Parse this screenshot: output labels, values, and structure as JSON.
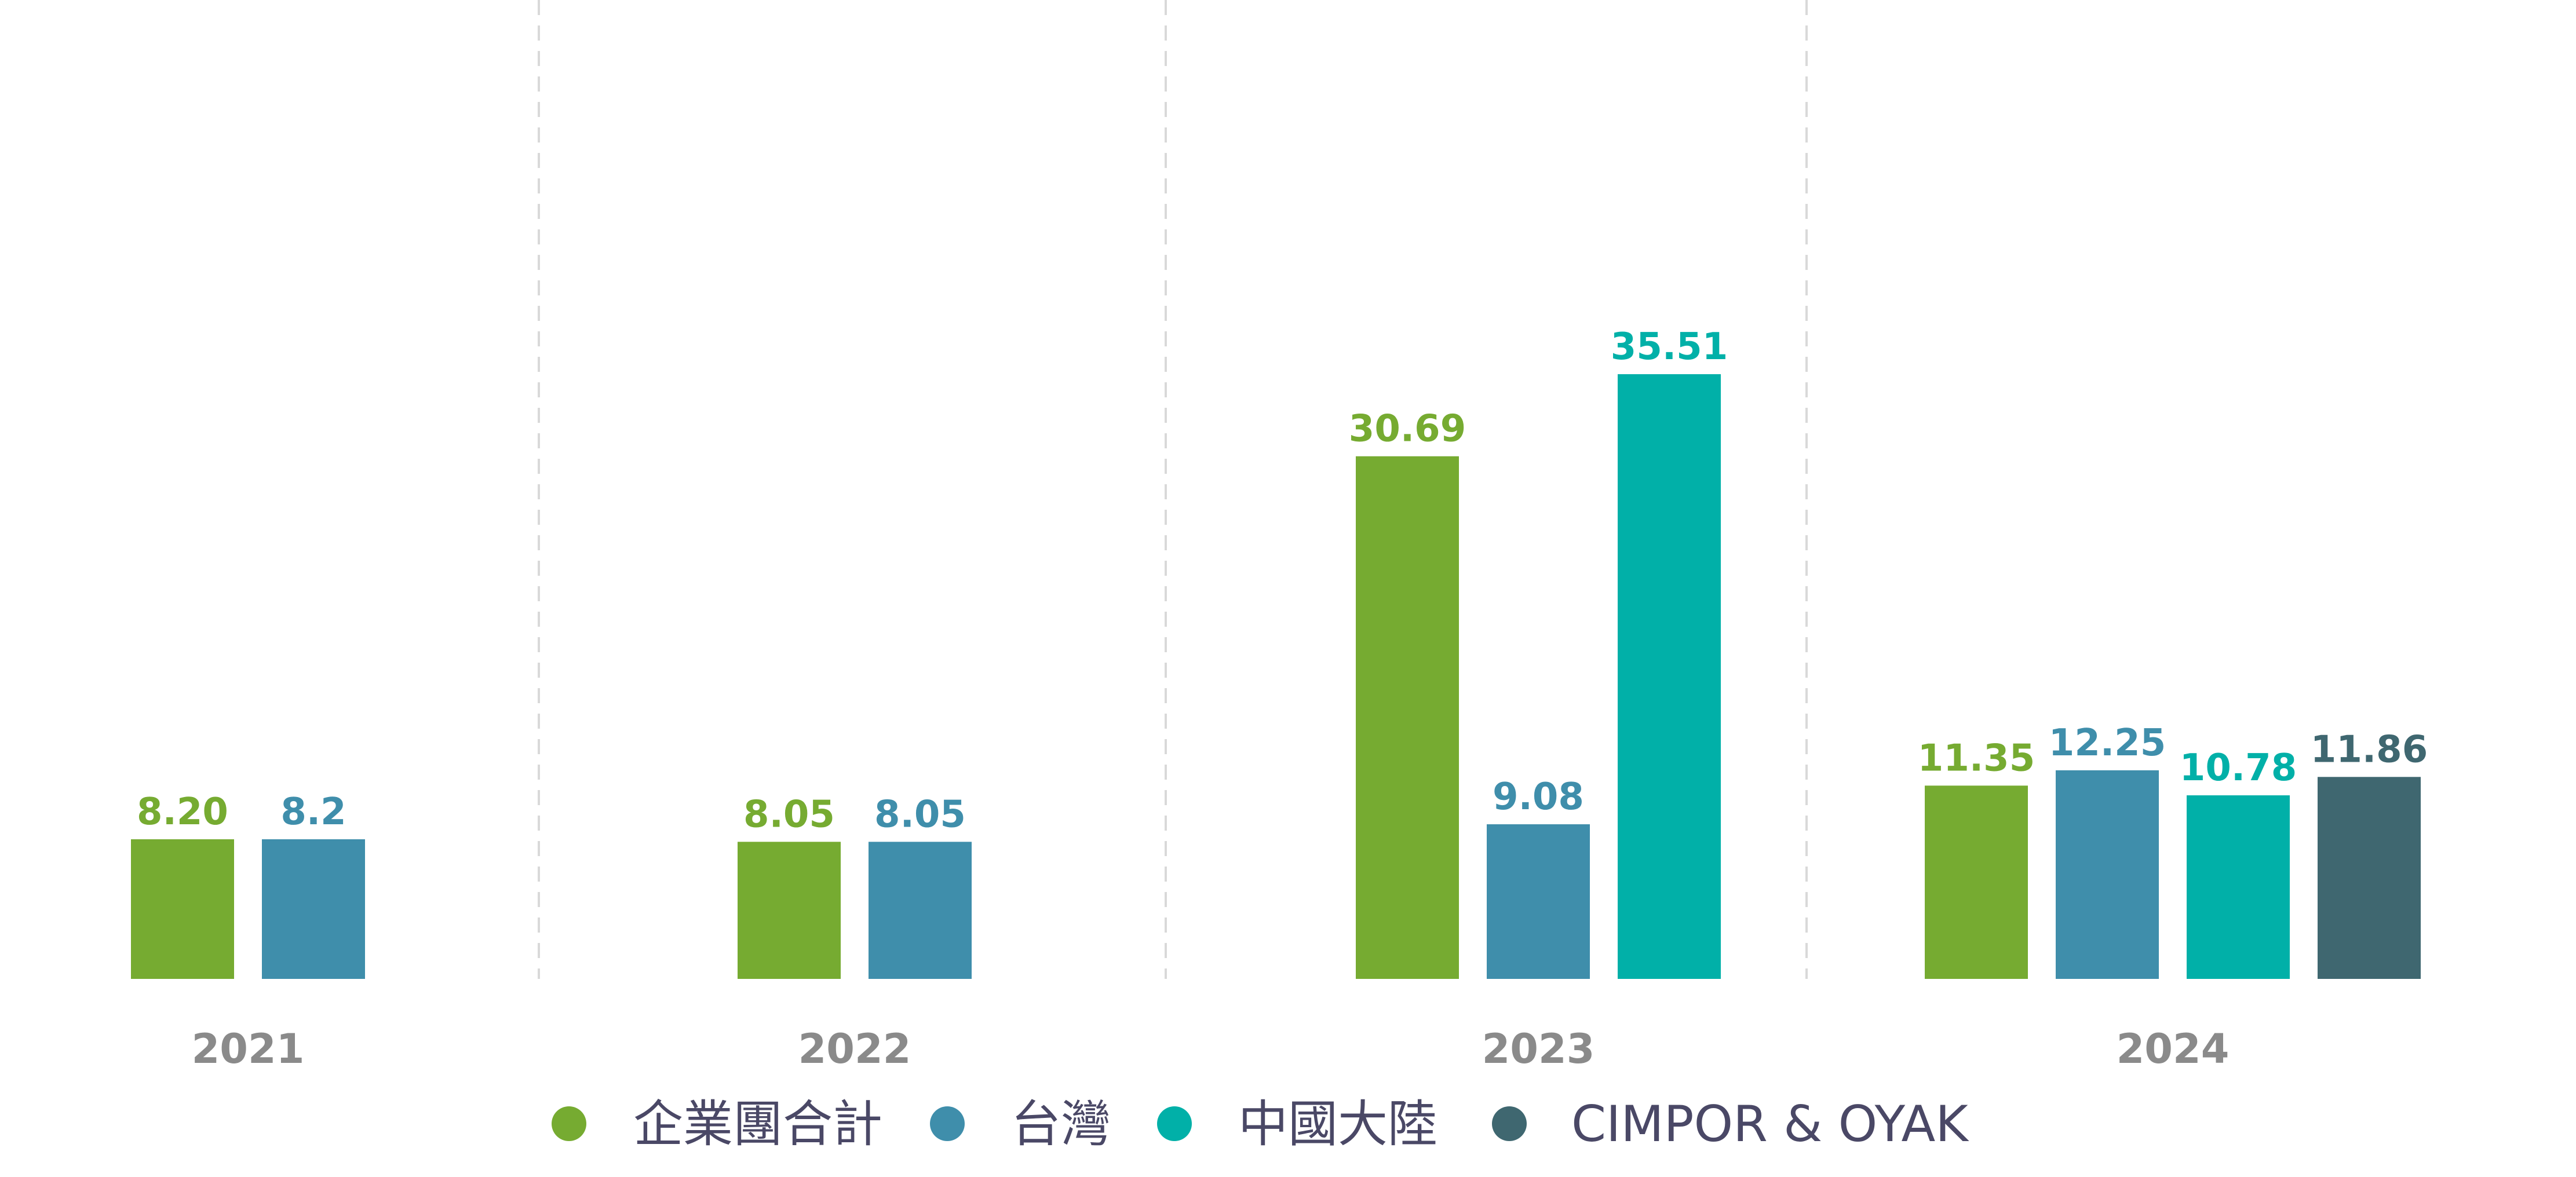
{
  "chart_data": {
    "type": "bar",
    "categories": [
      "2021",
      "2022",
      "2023",
      "2024"
    ],
    "series": [
      {
        "name": "企業團合計",
        "color": "#76ab31"
      },
      {
        "name": "台灣",
        "color": "#3f8eab"
      },
      {
        "name": "中國大陸",
        "color": "#01b0a8"
      },
      {
        "name": "CIMPOR & OYAK",
        "color": "#3f6770"
      }
    ],
    "groups": [
      {
        "category": "2021",
        "bars": [
          {
            "series": "企業團合計",
            "value": 8.2,
            "label": "8.20"
          },
          {
            "series": "台灣",
            "value": 8.2,
            "label": "8.2"
          }
        ]
      },
      {
        "category": "2022",
        "bars": [
          {
            "series": "企業團合計",
            "value": 8.05,
            "label": "8.05"
          },
          {
            "series": "台灣",
            "value": 8.05,
            "label": "8.05"
          }
        ]
      },
      {
        "category": "2023",
        "bars": [
          {
            "series": "企業團合計",
            "value": 30.69,
            "label": "30.69"
          },
          {
            "series": "台灣",
            "value": 9.08,
            "label": "9.08"
          },
          {
            "series": "中國大陸",
            "value": 35.51,
            "label": "35.51"
          }
        ]
      },
      {
        "category": "2024",
        "bars": [
          {
            "series": "企業團合計",
            "value": 11.35,
            "label": "11.35"
          },
          {
            "series": "台灣",
            "value": 12.25,
            "label": "12.25"
          },
          {
            "series": "中國大陸",
            "value": 10.78,
            "label": "10.78"
          },
          {
            "series": "CIMPOR & OYAK",
            "value": 11.86,
            "label": "11.86"
          }
        ]
      }
    ],
    "ylim": [
      0,
      50
    ],
    "grid": false,
    "legend_position": "bottom"
  }
}
